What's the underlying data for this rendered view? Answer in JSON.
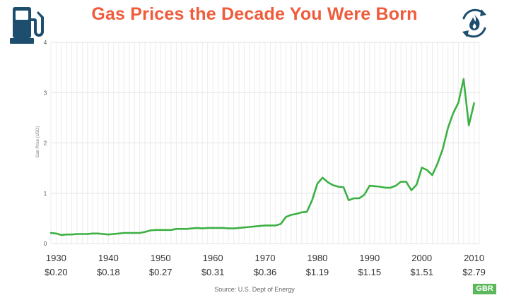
{
  "header": {
    "title": "Gas Prices the Decade You Were Born",
    "title_color": "#ef5b3b",
    "left_icon": "gas-pump-icon",
    "right_icon": "flame-cycle-icon",
    "icon_color": "#1d4e6e"
  },
  "footer": {
    "source": "Source: U.S. Dept of Energy",
    "badge": "GBR",
    "badge_color": "#5cb85c"
  },
  "chart_data": {
    "type": "line",
    "title": "Gas Prices the Decade You Were Born",
    "ylabel": "Gas Price (USD)",
    "xlabel": "",
    "xlim": [
      1929,
      2011
    ],
    "ylim": [
      0,
      4
    ],
    "yticks": [
      0,
      1,
      2,
      3,
      4
    ],
    "grid": {
      "vertical": true,
      "horizontal": true
    },
    "line_color": "#3cb043",
    "decade_labels": [
      {
        "year": 1930,
        "label": "1930",
        "price": "$0.20"
      },
      {
        "year": 1940,
        "label": "1940",
        "price": "$0.18"
      },
      {
        "year": 1950,
        "label": "1950",
        "price": "$0.27"
      },
      {
        "year": 1960,
        "label": "1960",
        "price": "$0.31"
      },
      {
        "year": 1970,
        "label": "1970",
        "price": "$0.36"
      },
      {
        "year": 1980,
        "label": "1980",
        "price": "$1.19"
      },
      {
        "year": 1990,
        "label": "1990",
        "price": "$1.15"
      },
      {
        "year": 2000,
        "label": "2000",
        "price": "$1.51"
      },
      {
        "year": 2010,
        "label": "2010",
        "price": "$2.79"
      }
    ],
    "series": [
      {
        "x": [
          1929,
          1930,
          1931,
          1932,
          1933,
          1934,
          1935,
          1936,
          1937,
          1938,
          1939,
          1940,
          1941,
          1942,
          1943,
          1944,
          1945,
          1946,
          1947,
          1948,
          1949,
          1950,
          1951,
          1952,
          1953,
          1954,
          1955,
          1956,
          1957,
          1958,
          1959,
          1960,
          1961,
          1962,
          1963,
          1964,
          1965,
          1966,
          1967,
          1968,
          1969,
          1970,
          1971,
          1972,
          1973,
          1974,
          1975,
          1976,
          1977,
          1978,
          1979,
          1980,
          1981,
          1982,
          1983,
          1984,
          1985,
          1986,
          1987,
          1988,
          1989,
          1990,
          1991,
          1992,
          1993,
          1994,
          1995,
          1996,
          1997,
          1998,
          1999,
          2000,
          2001,
          2002,
          2003,
          2004,
          2005,
          2006,
          2007,
          2008,
          2009,
          2010
        ],
        "y": [
          0.21,
          0.2,
          0.17,
          0.18,
          0.18,
          0.19,
          0.19,
          0.19,
          0.2,
          0.2,
          0.19,
          0.18,
          0.19,
          0.2,
          0.21,
          0.21,
          0.21,
          0.21,
          0.23,
          0.26,
          0.27,
          0.27,
          0.27,
          0.27,
          0.29,
          0.29,
          0.29,
          0.3,
          0.31,
          0.3,
          0.31,
          0.31,
          0.31,
          0.31,
          0.3,
          0.3,
          0.31,
          0.32,
          0.33,
          0.34,
          0.35,
          0.36,
          0.36,
          0.36,
          0.39,
          0.53,
          0.57,
          0.59,
          0.62,
          0.63,
          0.86,
          1.19,
          1.31,
          1.22,
          1.16,
          1.13,
          1.12,
          0.86,
          0.9,
          0.9,
          0.97,
          1.15,
          1.14,
          1.13,
          1.11,
          1.11,
          1.15,
          1.23,
          1.23,
          1.06,
          1.17,
          1.51,
          1.46,
          1.36,
          1.59,
          1.88,
          2.3,
          2.59,
          2.8,
          3.27,
          2.35,
          2.79
        ]
      }
    ]
  }
}
